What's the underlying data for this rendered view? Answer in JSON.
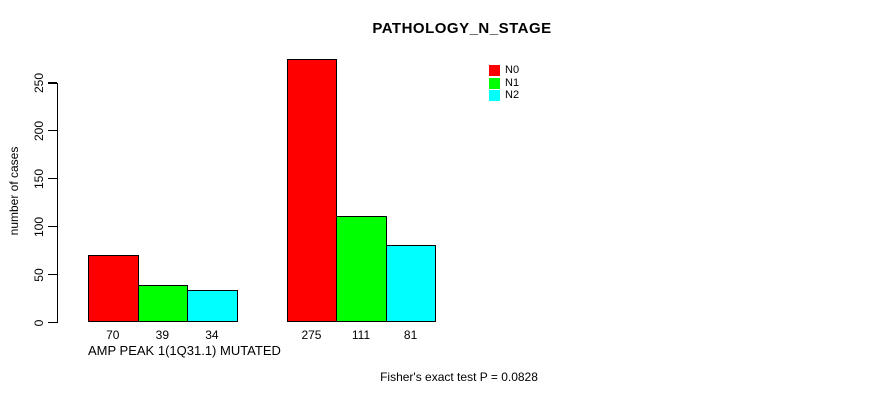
{
  "title": "PATHOLOGY_N_STAGE",
  "chart_data": {
    "type": "bar",
    "title": "PATHOLOGY_N_STAGE",
    "xlabel": "",
    "ylabel": "number of cases",
    "ylim": [
      0,
      250
    ],
    "yticks": [
      0,
      50,
      100,
      150,
      200,
      250
    ],
    "grid": false,
    "bar_border_color": "#000000",
    "categories": [
      "AMP PEAK 1(1Q31.1) MUTATED",
      ""
    ],
    "series": [
      {
        "name": "N0",
        "color": "#ff0000",
        "values": [
          70,
          275
        ]
      },
      {
        "name": "N1",
        "color": "#00ff00",
        "values": [
          39,
          111
        ]
      },
      {
        "name": "N2",
        "color": "#00ffff",
        "values": [
          34,
          81
        ]
      }
    ],
    "bar_value_labels": [
      [
        70,
        39,
        34
      ],
      [
        275,
        111,
        81
      ]
    ],
    "legend": {
      "position": "top-right",
      "entries": [
        "N0",
        "N1",
        "N2"
      ]
    },
    "footnote": "Fisher's exact test P = 0.0828"
  }
}
